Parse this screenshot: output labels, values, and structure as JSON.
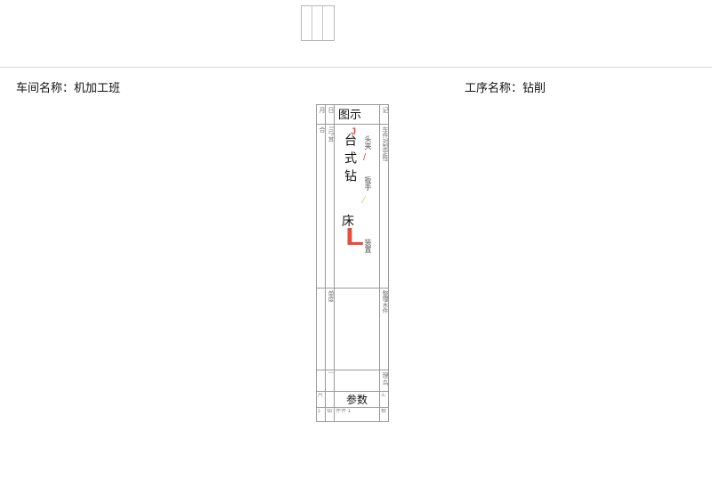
{
  "header": {
    "workshop_label": "车间名称：",
    "workshop_value": "机加工班",
    "process_label": "工序名称：",
    "process_value": "钻削"
  },
  "table": {
    "head": {
      "a": "月",
      "b": "日",
      "c": "图示",
      "d": "记"
    },
    "diagram": {
      "jtag": "J",
      "drill": "台式钻",
      "bed": "床",
      "L": "L",
      "tou": "头夹",
      "ban": "扳手",
      "zhz": "装置"
    },
    "param_label": "参数",
    "narrow": {
      "body_a": "合",
      "body_b": "I 弓 其",
      "body_d": "车件对型定性",
      "mid_b": "单度",
      "mid_d": "整埋木件",
      "slim_b": "|",
      "slim_d": "理·鸟",
      "par_a": "尺",
      "par_d": "汇",
      "num_a": "1",
      "num_b": "钼",
      "num_c": "件件 1",
      "num_d": "根"
    }
  },
  "style": {
    "accent": "#e74c3c",
    "warn": "#ecb24c",
    "border": "#999999",
    "light_border": "#d9d9d9"
  }
}
